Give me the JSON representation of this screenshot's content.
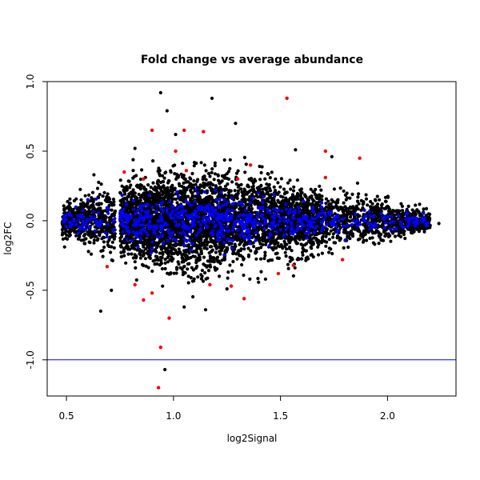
{
  "chart_data": {
    "type": "scatter",
    "title": "Fold change vs average abundance",
    "xlabel": "log2Signal",
    "ylabel": "log2FC",
    "xlim": [
      0.41,
      2.32
    ],
    "ylim": [
      -1.26,
      1.0
    ],
    "x_ticks": [
      0.5,
      1.0,
      1.5,
      2.0
    ],
    "x_tick_labels": [
      "0.5",
      "1.0",
      "1.5",
      "2.0"
    ],
    "y_ticks": [
      -1.0,
      -0.5,
      0.0,
      0.5,
      1.0
    ],
    "y_tick_labels": [
      "-1.0",
      "-0.5",
      "0.0",
      "0.5",
      "1.0"
    ],
    "grid": false,
    "legend": "none",
    "reference_lines": [
      {
        "axis": "y",
        "value": 1.0,
        "color": "#0000ff"
      },
      {
        "axis": "y",
        "value": -1.0,
        "color": "#0000ff"
      }
    ],
    "series": [
      {
        "color": "#000000",
        "description_shape": "dense cloud of points centered on log2FC 0, widest around log2Signal 0.9-1.1",
        "outliers": [
          {
            "x": 0.94,
            "y": 0.92
          },
          {
            "x": 0.97,
            "y": 0.79
          },
          {
            "x": 1.18,
            "y": 0.88
          },
          {
            "x": 1.01,
            "y": 0.62
          },
          {
            "x": 1.29,
            "y": 0.7
          },
          {
            "x": 1.57,
            "y": 0.51
          },
          {
            "x": 1.74,
            "y": 0.46
          },
          {
            "x": 0.66,
            "y": -0.65
          },
          {
            "x": 0.96,
            "y": -1.07
          },
          {
            "x": 1.05,
            "y": -0.62
          },
          {
            "x": 1.15,
            "y": -0.64
          },
          {
            "x": 2.16,
            "y": -0.01
          },
          {
            "x": 2.24,
            "y": -0.02
          },
          {
            "x": 0.71,
            "y": -0.5
          },
          {
            "x": 1.86,
            "y": 0.27
          },
          {
            "x": 1.25,
            "y": -0.49
          },
          {
            "x": 0.82,
            "y": 0.52
          },
          {
            "x": 1.43,
            "y": -0.42
          }
        ]
      },
      {
        "color": "#0000ff",
        "description_shape": "points within about ±0.2 log2FC across the signal range"
      },
      {
        "color": "#ff0000",
        "points": [
          {
            "x": 1.53,
            "y": 0.88
          },
          {
            "x": 0.9,
            "y": 0.65
          },
          {
            "x": 1.05,
            "y": 0.65
          },
          {
            "x": 1.14,
            "y": 0.64
          },
          {
            "x": 1.71,
            "y": 0.5
          },
          {
            "x": 1.87,
            "y": 0.45
          },
          {
            "x": 1.01,
            "y": 0.5
          },
          {
            "x": 1.36,
            "y": 0.4
          },
          {
            "x": 1.71,
            "y": 0.31
          },
          {
            "x": 0.93,
            "y": -1.2
          },
          {
            "x": 0.94,
            "y": -0.91
          },
          {
            "x": 0.98,
            "y": -0.7
          },
          {
            "x": 0.86,
            "y": -0.57
          },
          {
            "x": 0.9,
            "y": -0.52
          },
          {
            "x": 1.33,
            "y": -0.56
          },
          {
            "x": 1.27,
            "y": -0.47
          },
          {
            "x": 1.17,
            "y": -0.46
          },
          {
            "x": 1.79,
            "y": -0.28
          },
          {
            "x": 0.82,
            "y": -0.46
          },
          {
            "x": 1.49,
            "y": -0.38
          },
          {
            "x": 0.86,
            "y": 0.3
          },
          {
            "x": 1.06,
            "y": 0.36
          },
          {
            "x": 0.77,
            "y": 0.35
          },
          {
            "x": 1.3,
            "y": 0.3
          },
          {
            "x": 1.56,
            "y": -0.32
          },
          {
            "x": 0.69,
            "y": -0.33
          }
        ]
      }
    ]
  }
}
